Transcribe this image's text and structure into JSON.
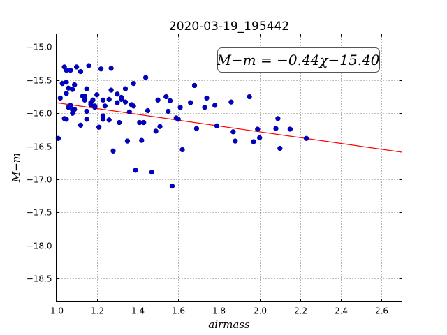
{
  "chart_data": {
    "type": "scatter",
    "title": "2020-03-19_195442",
    "xlabel": "airmass",
    "ylabel": "M−m",
    "xlim": [
      1.0,
      2.7
    ],
    "ylim": [
      -18.85,
      -14.8
    ],
    "y_inverted": true,
    "grid": true,
    "x_ticks": [
      1.0,
      1.2,
      1.4,
      1.6,
      1.8,
      2.0,
      2.2,
      2.4,
      2.6
    ],
    "x_tick_labels": [
      "1.0",
      "1.2",
      "1.4",
      "1.6",
      "1.8",
      "2.0",
      "2.2",
      "2.4",
      "2.6"
    ],
    "y_ticks": [
      -15.0,
      -15.5,
      -16.0,
      -16.5,
      -17.0,
      -17.5,
      -18.0,
      -18.5
    ],
    "y_tick_labels": [
      "−15.0",
      "−15.5",
      "−16.0",
      "−16.5",
      "−17.0",
      "−17.5",
      "−18.0",
      "−18.5"
    ],
    "annotation": "M−m = −0.44χ−15.40",
    "annotation_placement": "top-right",
    "point_color": "#0000cc",
    "line_color": "#ff0000",
    "fit": {
      "slope": -0.44,
      "intercept": -15.4
    },
    "points": [
      [
        1.01,
        -16.38
      ],
      [
        1.02,
        -15.77
      ],
      [
        1.03,
        -15.55
      ],
      [
        1.04,
        -15.3
      ],
      [
        1.04,
        -16.08
      ],
      [
        1.05,
        -15.7
      ],
      [
        1.05,
        -15.53
      ],
      [
        1.05,
        -15.35
      ],
      [
        1.05,
        -16.09
      ],
      [
        1.06,
        -15.62
      ],
      [
        1.06,
        -15.91
      ],
      [
        1.07,
        -15.88
      ],
      [
        1.07,
        -15.35
      ],
      [
        1.08,
        -15.64
      ],
      [
        1.08,
        -15.95
      ],
      [
        1.08,
        -16.0
      ],
      [
        1.09,
        -15.57
      ],
      [
        1.09,
        -15.94
      ],
      [
        1.1,
        -15.3
      ],
      [
        1.12,
        -16.18
      ],
      [
        1.12,
        -15.37
      ],
      [
        1.13,
        -15.74
      ],
      [
        1.14,
        -15.8
      ],
      [
        1.14,
        -15.74
      ],
      [
        1.15,
        -15.97
      ],
      [
        1.15,
        -16.09
      ],
      [
        1.15,
        -15.63
      ],
      [
        1.16,
        -15.28
      ],
      [
        1.17,
        -15.84
      ],
      [
        1.17,
        -15.87
      ],
      [
        1.18,
        -15.8
      ],
      [
        1.19,
        -15.89
      ],
      [
        1.19,
        -15.91
      ],
      [
        1.2,
        -15.72
      ],
      [
        1.21,
        -16.21
      ],
      [
        1.22,
        -15.33
      ],
      [
        1.23,
        -16.09
      ],
      [
        1.23,
        -16.04
      ],
      [
        1.23,
        -15.8
      ],
      [
        1.24,
        -15.89
      ],
      [
        1.26,
        -15.79
      ],
      [
        1.26,
        -16.1
      ],
      [
        1.27,
        -15.32
      ],
      [
        1.27,
        -15.65
      ],
      [
        1.28,
        -16.57
      ],
      [
        1.3,
        -15.71
      ],
      [
        1.3,
        -15.84
      ],
      [
        1.31,
        -16.14
      ],
      [
        1.32,
        -15.79
      ],
      [
        1.32,
        -15.76
      ],
      [
        1.34,
        -15.83
      ],
      [
        1.34,
        -15.63
      ],
      [
        1.35,
        -16.42
      ],
      [
        1.36,
        -15.98
      ],
      [
        1.37,
        -15.87
      ],
      [
        1.38,
        -15.89
      ],
      [
        1.38,
        -15.55
      ],
      [
        1.39,
        -16.86
      ],
      [
        1.41,
        -16.14
      ],
      [
        1.42,
        -16.41
      ],
      [
        1.43,
        -16.14
      ],
      [
        1.44,
        -15.46
      ],
      [
        1.45,
        -15.96
      ],
      [
        1.47,
        -16.89
      ],
      [
        1.49,
        -16.27
      ],
      [
        1.5,
        -15.8
      ],
      [
        1.51,
        -16.2
      ],
      [
        1.54,
        -15.75
      ],
      [
        1.55,
        -15.97
      ],
      [
        1.56,
        -15.81
      ],
      [
        1.57,
        -17.1
      ],
      [
        1.59,
        -16.07
      ],
      [
        1.6,
        -16.09
      ],
      [
        1.61,
        -15.91
      ],
      [
        1.62,
        -16.55
      ],
      [
        1.66,
        -15.84
      ],
      [
        1.68,
        -15.58
      ],
      [
        1.69,
        -16.23
      ],
      [
        1.73,
        -15.91
      ],
      [
        1.74,
        -15.77
      ],
      [
        1.78,
        -15.88
      ],
      [
        1.79,
        -16.19
      ],
      [
        1.86,
        -15.83
      ],
      [
        1.87,
        -16.28
      ],
      [
        1.88,
        -16.42
      ],
      [
        1.95,
        -15.75
      ],
      [
        1.97,
        -16.43
      ],
      [
        1.99,
        -16.24
      ],
      [
        2.0,
        -16.37
      ],
      [
        2.08,
        -16.23
      ],
      [
        2.09,
        -16.08
      ],
      [
        2.1,
        -16.53
      ],
      [
        2.15,
        -16.24
      ],
      [
        2.23,
        -16.38
      ]
    ]
  }
}
